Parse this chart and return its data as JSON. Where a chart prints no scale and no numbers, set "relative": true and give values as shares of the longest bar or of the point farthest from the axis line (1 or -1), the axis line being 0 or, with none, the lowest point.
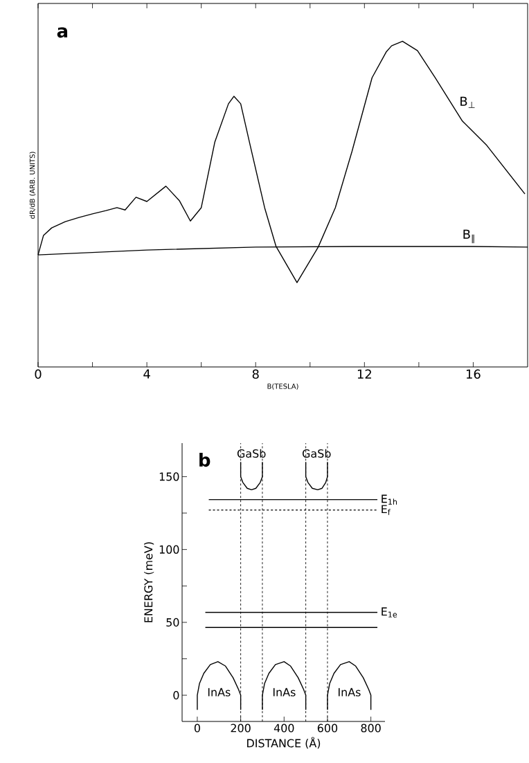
{
  "chart_data": [
    {
      "type": "line",
      "relative": true,
      "xlabel": "B(TESLA)",
      "ylabel": "dR/dB (ARB. UNITS)",
      "annotations": [
        "a"
      ],
      "xlim": [
        0,
        18
      ],
      "xticks": [
        0,
        {
          "value": 2,
          "label": null
        },
        4,
        {
          "value": 6,
          "label": null
        },
        8,
        {
          "value": 10,
          "label": null
        },
        12,
        {
          "value": 14,
          "label": null
        },
        16
      ],
      "series": [
        {
          "name": "B$_{⊥}$",
          "color": "#000000",
          "x": [
            0,
            0.2,
            0.5,
            1.0,
            1.5,
            2.0,
            2.5,
            2.9,
            3.2,
            3.6,
            4.0,
            4.7,
            5.2,
            5.6,
            6.0,
            6.5,
            7.0,
            7.2,
            7.45,
            7.8,
            8.33,
            8.75,
            9.52,
            10.3,
            10.93,
            11.54,
            12.28,
            12.8,
            13.0,
            13.4,
            13.95,
            14.6,
            15.6,
            16.5,
            17.9
          ],
          "values": [
            0.344,
            0.404,
            0.427,
            0.446,
            0.459,
            0.47,
            0.48,
            0.489,
            0.482,
            0.521,
            0.508,
            0.555,
            0.51,
            0.448,
            0.489,
            0.691,
            0.808,
            0.831,
            0.808,
            0.68,
            0.489,
            0.37,
            0.259,
            0.368,
            0.489,
            0.661,
            0.888,
            0.967,
            0.986,
            1,
            0.971,
            0.888,
            0.755,
            0.68,
            0.531
          ]
        },
        {
          "name": "B$_{∥}$",
          "color": "#000000",
          "x": [
            0,
            4,
            8,
            12,
            16,
            18
          ],
          "values": [
            0.344,
            0.359,
            0.368,
            0.37,
            0.37,
            0.368
          ]
        }
      ]
    },
    {
      "type": "line",
      "xlabel": "DISTANCE (Å)",
      "ylabel": "ENERGY (meV)",
      "xlim": [
        -70,
        865
      ],
      "ylim": [
        -18,
        173
      ],
      "xticks": [
        0,
        200,
        400,
        600,
        800
      ],
      "yticks": [
        0,
        {
          "value": 25,
          "label": null
        },
        50,
        {
          "value": 75,
          "label": null
        },
        100,
        {
          "value": 125,
          "label": null
        },
        150
      ],
      "ref_lines": [
        {
          "axis": "x",
          "value": 200,
          "line_style": "dashed"
        },
        {
          "axis": "x",
          "value": 300,
          "line_style": "dashed"
        },
        {
          "axis": "x",
          "value": 500,
          "line_style": "dashed"
        },
        {
          "axis": "x",
          "value": 600,
          "line_style": "dashed"
        }
      ],
      "annotations": [
        "b",
        "GaSb",
        "GaSb",
        "InAs",
        "InAs",
        "InAs"
      ],
      "series": [
        {
          "name": "E$_{1h}$",
          "color": "#000000",
          "x": [
            53,
            830
          ],
          "values": [
            134.2,
            134.2
          ]
        },
        {
          "name": "E$_{f}$",
          "color": "#000000",
          "line_style": "dashed",
          "x": [
            53,
            830
          ],
          "values": [
            127.1,
            127.1
          ]
        },
        {
          "name": "E$_{1e}$",
          "color": "#000000",
          "x": [
            37,
            830
          ],
          "values": [
            56.8,
            56.8
          ]
        },
        {
          "color": "#000000",
          "x": [
            37,
            830
          ],
          "values": [
            46.5,
            46.5
          ]
        },
        {
          "color": "#000000",
          "x": [
            200,
            200,
            210,
            230,
            250,
            270,
            290,
            300,
            300
          ],
          "values": [
            160,
            150,
            146,
            142,
            141,
            142,
            146,
            150,
            160
          ]
        },
        {
          "color": "#000000",
          "x": [
            500,
            500,
            510,
            530,
            555,
            575,
            592,
            600,
            600
          ],
          "values": [
            160,
            150,
            146,
            142,
            141,
            142,
            146,
            150,
            160
          ]
        },
        {
          "color": "#000000",
          "x": [
            0,
            0,
            10,
            30,
            60,
            95,
            130,
            165,
            190,
            200,
            200
          ],
          "values": [
            -10,
            0,
            8,
            15,
            21,
            23,
            20,
            12,
            4,
            0,
            -10
          ]
        },
        {
          "color": "#000000",
          "x": [
            300,
            300,
            310,
            330,
            360,
            400,
            430,
            465,
            490,
            500,
            500
          ],
          "values": [
            -10,
            0,
            8,
            15,
            21,
            23,
            20,
            12,
            4,
            0,
            -10
          ]
        },
        {
          "color": "#000000",
          "x": [
            600,
            600,
            610,
            630,
            660,
            700,
            730,
            765,
            790,
            800,
            800
          ],
          "values": [
            -10,
            0,
            8,
            15,
            21,
            23,
            20,
            12,
            4,
            0,
            -10
          ]
        }
      ]
    }
  ]
}
